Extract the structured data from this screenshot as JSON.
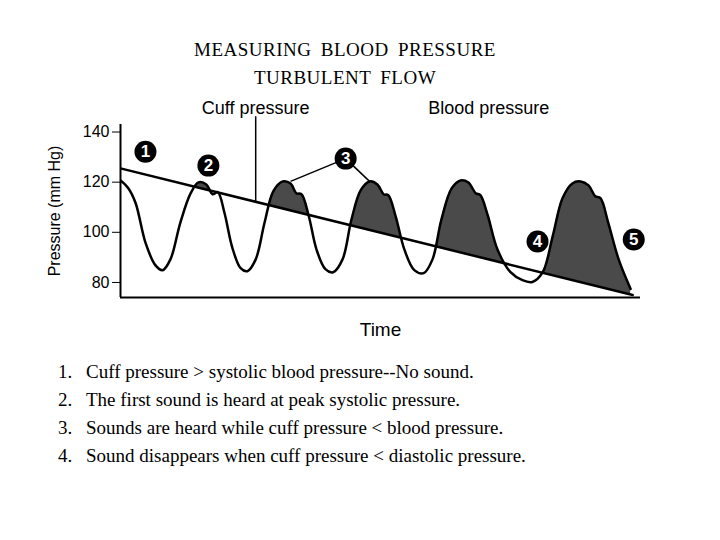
{
  "chart_data": {
    "type": "line",
    "title": "MEASURING BLOOD PRESSURE",
    "subtitle": "TURBULENT FLOW",
    "x_label": "Time",
    "y_label": "Pressure (mm Hg)",
    "xlim": [
      0,
      100
    ],
    "ylim": [
      74,
      143
    ],
    "yticks": [
      80,
      100,
      120,
      140
    ],
    "tick_labels": "y",
    "grid": false,
    "series": [
      {
        "name": "Blood pressure",
        "color": "#000000",
        "label": {
          "x": 70.8,
          "y": 146.3
        },
        "x": [
          0,
          1.5,
          2.9,
          4.8,
          6.7,
          8.1,
          9.6,
          11.5,
          13.5,
          15,
          16.5,
          17.7,
          18.7,
          20,
          21.5,
          23.1,
          24.4,
          26,
          27.7,
          29.4,
          31.2,
          32.7,
          33.8,
          34.8,
          36.2,
          37.7,
          39.4,
          40.9,
          42.7,
          44.4,
          46.2,
          47.9,
          49.4,
          50.6,
          51.5,
          52.9,
          54.6,
          56.5,
          58.3,
          60,
          61.7,
          63.7,
          65.4,
          66.9,
          68.3,
          69.2,
          70.6,
          72.5,
          75,
          77.3,
          79.2,
          81.2,
          83.1,
          85,
          86.9,
          88.5,
          90,
          91.3,
          92.3,
          93.8,
          95.8,
          98.1
        ],
        "values": [
          120.7,
          117.6,
          111.7,
          95.9,
          86.9,
          84.9,
          89.2,
          103.8,
          115.6,
          119.9,
          119.1,
          115.2,
          116.0,
          107.7,
          93.9,
          85.7,
          84.5,
          89.2,
          103.8,
          116.4,
          120.3,
          119.5,
          115.6,
          115.2,
          106.5,
          93.1,
          85.3,
          84.1,
          89.2,
          105.0,
          116.8,
          120.3,
          119.1,
          115.2,
          114.8,
          106.5,
          93.1,
          84.9,
          83.7,
          89.2,
          105.0,
          117.6,
          120.7,
          119.9,
          115.6,
          114.8,
          106.9,
          93.1,
          84.1,
          80.9,
          80.2,
          84.1,
          98.3,
          113.6,
          119.5,
          120.3,
          118.7,
          114.4,
          113.6,
          103.8,
          89.2,
          77.4
        ]
      },
      {
        "name": "Cuff pressure",
        "color": "#000000",
        "label": {
          "x": 26,
          "y": 146.3,
          "points_to": [
            [
              26,
              112
            ]
          ]
        },
        "x": [
          0,
          98.5
        ],
        "values": [
          125.5,
          75
        ]
      }
    ],
    "annotations": [
      {
        "text": "1",
        "x": 4.8,
        "y": 132.1
      },
      {
        "text": "2",
        "x": 16.9,
        "y": 126.6
      },
      {
        "text": "3",
        "x": 43.3,
        "y": 129.4,
        "points_to": [
          [
            32.7,
            120.3
          ],
          [
            47.9,
            120.3
          ]
        ]
      },
      {
        "text": "4",
        "x": 80.2,
        "y": 96.3
      },
      {
        "text": "5",
        "x": 98.7,
        "y": 97.1
      }
    ],
    "notes": [
      {
        "label": "1.",
        "text": "Cuff pressure > systolic blood pressure--No sound."
      },
      {
        "label": "2.",
        "text": "The first sound is heard at peak systolic pressure."
      },
      {
        "label": "3.",
        "text": "Sounds are heard while cuff pressure < blood pressure."
      },
      {
        "label": "4.",
        "text": "Sound disappears when cuff pressure < diastolic pressure."
      }
    ]
  }
}
